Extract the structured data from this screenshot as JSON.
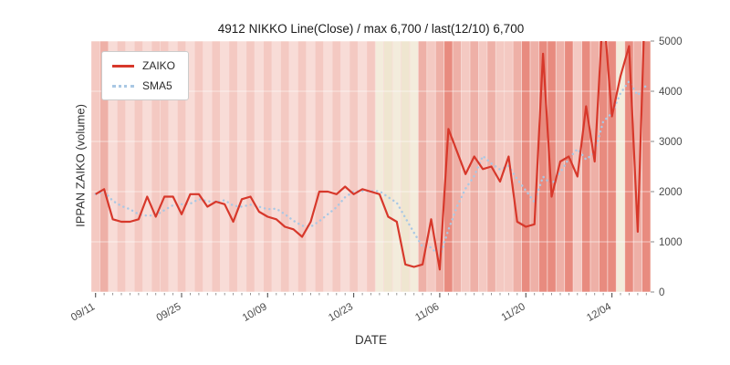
{
  "chart_data": {
    "type": "line",
    "title": "4912 NIKKO Line(Close) / max 6,700 / last(12/10) 6,700",
    "xlabel": "DATE",
    "ylabel": "IPPAN ZAIKO (volume)",
    "ylim": [
      0,
      5000
    ],
    "grid": true,
    "legend_position": "upper left",
    "max_value": 6700,
    "last_date": "12/10",
    "last_value": 6700,
    "dates": [
      "09/11",
      "09/12",
      "09/13",
      "09/16",
      "09/17",
      "09/18",
      "09/19",
      "09/20",
      "09/23",
      "09/24",
      "09/25",
      "09/26",
      "09/27",
      "09/30",
      "10/01",
      "10/02",
      "10/03",
      "10/04",
      "10/07",
      "10/08",
      "10/09",
      "10/10",
      "10/11",
      "10/14",
      "10/15",
      "10/16",
      "10/17",
      "10/18",
      "10/21",
      "10/22",
      "10/23",
      "10/24",
      "10/25",
      "10/28",
      "10/29",
      "10/30",
      "10/31",
      "11/01",
      "11/04",
      "11/05",
      "11/06",
      "11/07",
      "11/08",
      "11/11",
      "11/12",
      "11/13",
      "11/14",
      "11/15",
      "11/18",
      "11/19",
      "11/20",
      "11/21",
      "11/22",
      "11/25",
      "11/26",
      "11/27",
      "11/28",
      "11/29",
      "12/02",
      "12/03",
      "12/04",
      "12/05",
      "12/06",
      "12/09",
      "12/10"
    ],
    "series": [
      {
        "name": "ZAIKO",
        "style": "solid",
        "values": [
          1950,
          2050,
          1450,
          1400,
          1400,
          1450,
          1900,
          1500,
          1900,
          1900,
          1550,
          1950,
          1950,
          1700,
          1800,
          1750,
          1400,
          1850,
          1900,
          1600,
          1500,
          1450,
          1300,
          1250,
          1100,
          1400,
          2000,
          2000,
          1950,
          2100,
          1950,
          2050,
          2000,
          1950,
          1500,
          1400,
          550,
          500,
          550,
          1450,
          450,
          3250,
          2800,
          2350,
          2700,
          2450,
          2500,
          2200,
          2700,
          1400,
          1300,
          1350,
          4750,
          1900,
          2600,
          2700,
          2300,
          3700,
          2600,
          5700,
          3500,
          4300,
          4900,
          1200,
          6700
        ]
      },
      {
        "name": "SMA5",
        "style": "dotted",
        "derived": "5-point moving average of ZAIKO"
      }
    ],
    "xtick_indices": [
      0,
      10,
      20,
      30,
      40,
      50,
      60
    ],
    "xtick_labels": [
      "09/11",
      "09/25",
      "10/09",
      "10/23",
      "11/06",
      "11/20",
      "12/04"
    ],
    "ytick_values": [
      0,
      1000,
      2000,
      3000,
      4000,
      5000
    ],
    "ytick_labels": [
      "0",
      "1000",
      "2000",
      "3000",
      "4000",
      "5000"
    ],
    "band_colors": [
      "#f4c9c2",
      "#eeb0a7",
      "#f8dcd7",
      "#f4c9c2",
      "#f8dcd7",
      "#f4c9c2",
      "#f8dcd7",
      "#f4c9c2",
      "#f4c9c2",
      "#f8dcd7",
      "#f4c9c2",
      "#f8dcd7",
      "#f4c9c2",
      "#f8dcd7",
      "#f4c9c2",
      "#f8dcd7",
      "#f4c9c2",
      "#f8dcd7",
      "#f4c9c2",
      "#f8dcd7",
      "#f4c9c2",
      "#f8dcd7",
      "#f4c9c2",
      "#f8dcd7",
      "#f4c9c2",
      "#f8dcd7",
      "#f4c9c2",
      "#f8dcd7",
      "#f4c9c2",
      "#f8dcd7",
      "#f4c9c2",
      "#f8dcd7",
      "#f4c9c2",
      "#f3ecdc",
      "#efe6d0",
      "#f3ecdc",
      "#efe6d0",
      "#f3ecdc",
      "#eeb0a7",
      "#f4c9c2",
      "#eeb0a7",
      "#e88b7f",
      "#eeb0a7",
      "#f4c9c2",
      "#eeb0a7",
      "#f4c9c2",
      "#eeb0a7",
      "#f4c9c2",
      "#f4c9c2",
      "#eeb0a7",
      "#e88b7f",
      "#eeb0a7",
      "#e88b7f",
      "#e88b7f",
      "#eeb0a7",
      "#e88b7f",
      "#f4c9c2",
      "#e88b7f",
      "#eeb0a7",
      "#e88b7f",
      "#e88b7f",
      "#f3ecdc",
      "#e88b7f",
      "#eeb0a7",
      "#e88b7f"
    ],
    "colors": {
      "zaiko": "#d7382b",
      "sma5": "#a9c8e4",
      "plot_bg": "#f8ddd8",
      "grid": "#ffffff",
      "tick_text": "#4a4a4a"
    }
  }
}
